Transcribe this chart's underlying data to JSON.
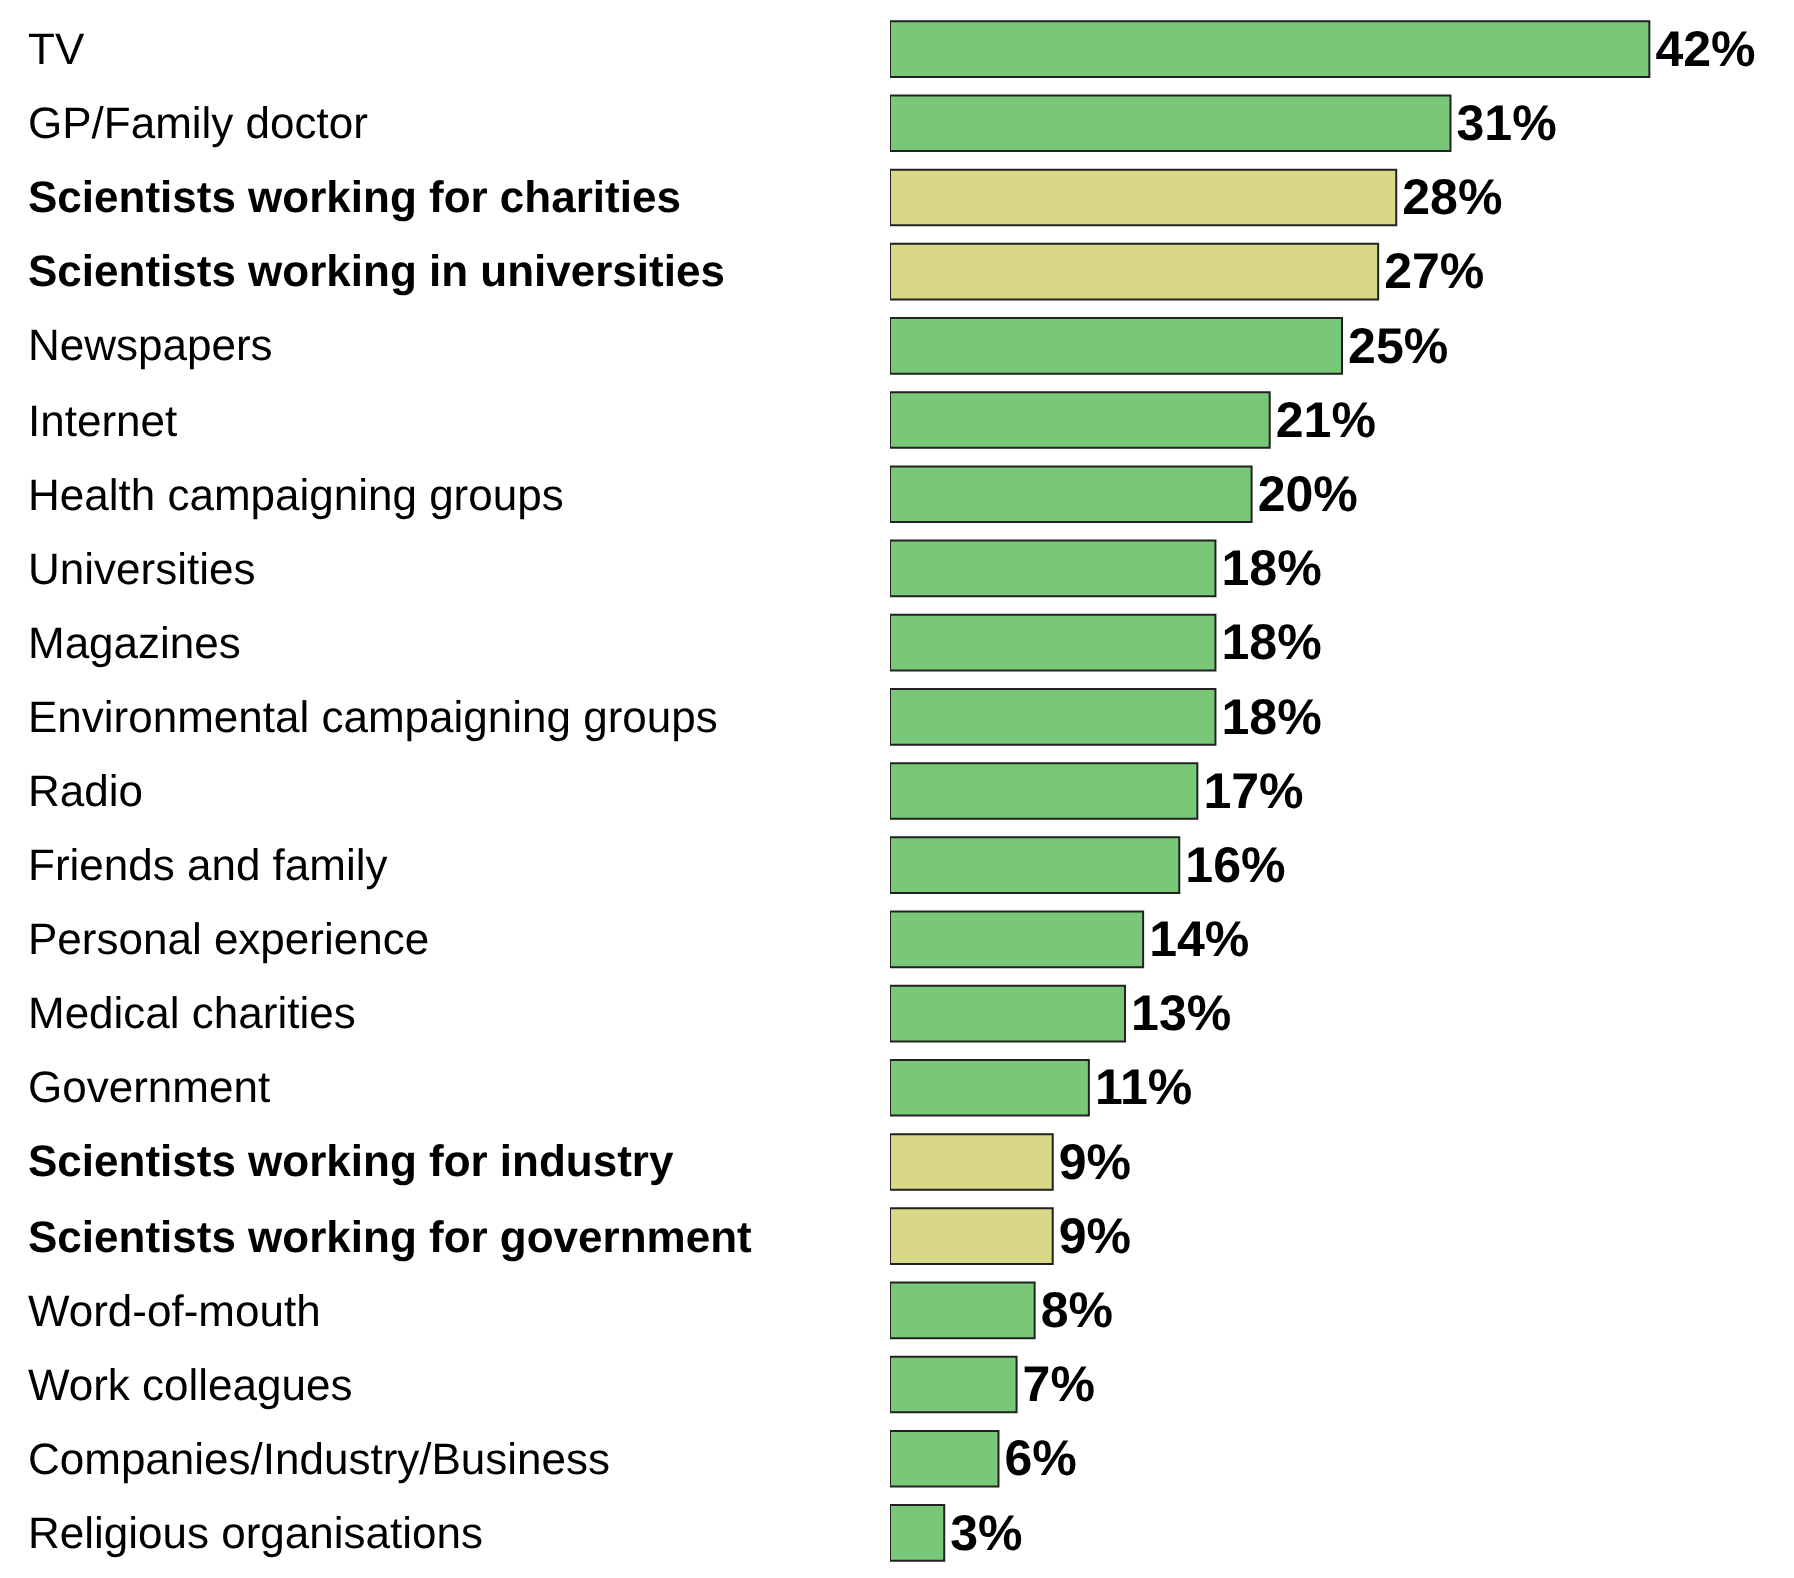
{
  "chart_data": {
    "type": "bar",
    "orientation": "horizontal",
    "relative": false,
    "categories": [
      "TV",
      "GP/Family doctor",
      "Scientists working for charities",
      "Scientists working in universities",
      "Newspapers",
      "Internet",
      "Health campaigning groups",
      "Universities",
      "Magazines",
      "Environmental campaigning groups",
      "Radio",
      "Friends and family",
      "Personal experience",
      "Medical charities",
      "Government",
      "Scientists working for industry",
      "Scientists working for government",
      "Word-of-mouth",
      "Work colleagues",
      "Companies/Industry/Business",
      "Religious organisations"
    ],
    "values": [
      42,
      31,
      28,
      27,
      25,
      21,
      20,
      18,
      18,
      18,
      17,
      16,
      14,
      13,
      11,
      9,
      9,
      8,
      7,
      6,
      3
    ],
    "value_labels": [
      "42%",
      "31%",
      "28%",
      "27%",
      "25%",
      "21%",
      "20%",
      "18%",
      "18%",
      "18%",
      "17%",
      "16%",
      "14%",
      "13%",
      "11%",
      "9%",
      "9%",
      "8%",
      "7%",
      "6%",
      "3%"
    ],
    "colors": [
      "#78c878",
      "#78c878",
      "#d8d888",
      "#d8d888",
      "#78c878",
      "#78c878",
      "#78c878",
      "#78c878",
      "#78c878",
      "#78c878",
      "#78c878",
      "#78c878",
      "#78c878",
      "#78c878",
      "#78c878",
      "#d8d888",
      "#d8d888",
      "#78c878",
      "#78c878",
      "#78c878",
      "#78c878"
    ],
    "xlim": [
      0,
      50
    ],
    "tick_labels": false,
    "legend": false
  }
}
